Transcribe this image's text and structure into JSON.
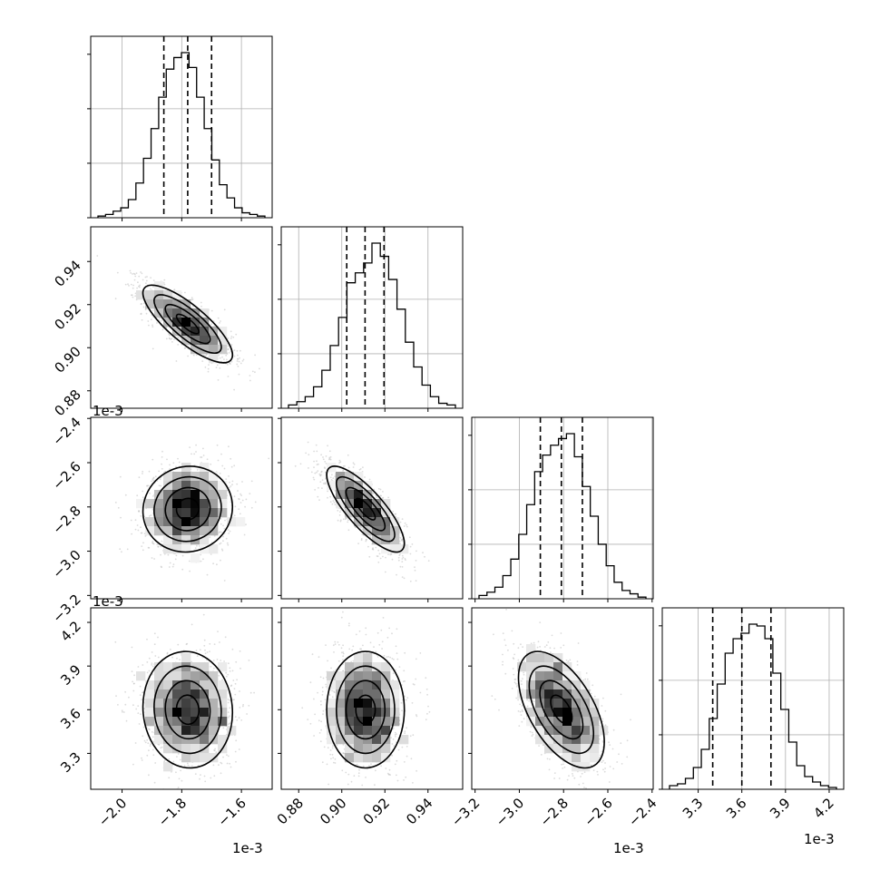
{
  "chart_data": {
    "type": "corner",
    "colors": {
      "line": "#000000",
      "grid": "#b0b0b0",
      "scatter": "#bdbdbd"
    },
    "grid": true,
    "parameters": [
      {
        "offset_label": "1e-3",
        "ticks": [
          -2.0,
          -1.8,
          -1.6
        ],
        "tick_labels": [
          "−2.0",
          "−1.8",
          "−1.6"
        ],
        "range": [
          -2.105,
          -1.497
        ],
        "quantiles": [
          -1.86,
          -1.78,
          -1.7
        ],
        "mean": -1.78,
        "sd": 0.075,
        "hist_counts": [
          1,
          2,
          4,
          6,
          11,
          21,
          36,
          54,
          73,
          90,
          97,
          100,
          91,
          73,
          54,
          35,
          20,
          12,
          6,
          3,
          2,
          1
        ]
      },
      {
        "offset_label": "",
        "ticks": [
          0.88,
          0.9,
          0.92,
          0.94
        ],
        "tick_labels": [
          "0.88",
          "0.90",
          "0.92",
          "0.94"
        ],
        "range": [
          0.8719,
          0.9561
        ],
        "quantiles": [
          0.9023,
          0.9108,
          0.9196
        ],
        "mean": 0.911,
        "sd": 0.009,
        "hist_counts": [
          2,
          4,
          7,
          13,
          23,
          38,
          55,
          76,
          82,
          88,
          100,
          92,
          78,
          60,
          40,
          25,
          14,
          7,
          3,
          2
        ]
      },
      {
        "offset_label": "1e-3",
        "ticks": [
          -3.2,
          -3.0,
          -2.8,
          -2.6,
          -2.4
        ],
        "tick_labels": [
          "−3.2",
          "−3.0",
          "−2.8",
          "−2.6",
          "−2.4"
        ],
        "range": [
          -3.215,
          -2.395
        ],
        "quantiles": [
          -2.905,
          -2.81,
          -2.715
        ],
        "mean": -2.81,
        "sd": 0.097,
        "hist_counts": [
          2,
          4,
          7,
          14,
          24,
          39,
          57,
          77,
          87,
          93,
          97,
          100,
          86,
          68,
          50,
          33,
          20,
          10,
          5,
          3,
          1
        ]
      },
      {
        "offset_label": "1e-3",
        "ticks": [
          3.3,
          3.6,
          3.9,
          4.2
        ],
        "tick_labels": [
          "3.3",
          "3.6",
          "3.9",
          "4.2"
        ],
        "range": [
          3.0533,
          4.3
        ],
        "quantiles": [
          3.4,
          3.6,
          3.8
        ],
        "mean": 3.6,
        "sd": 0.2,
        "hist_counts": [
          2,
          3,
          6,
          12,
          22,
          39,
          58,
          75,
          83,
          86,
          91,
          90,
          83,
          64,
          44,
          26,
          13,
          7,
          4,
          2,
          1
        ]
      }
    ],
    "correlations": {
      "1-0": -0.8,
      "2-0": 0.05,
      "2-1": -0.8,
      "3-0": -0.05,
      "3-1": 0.0,
      "3-2": -0.55
    },
    "contour_levels_sigma": [
      0.5,
      1.0,
      1.5,
      2.0
    ]
  }
}
